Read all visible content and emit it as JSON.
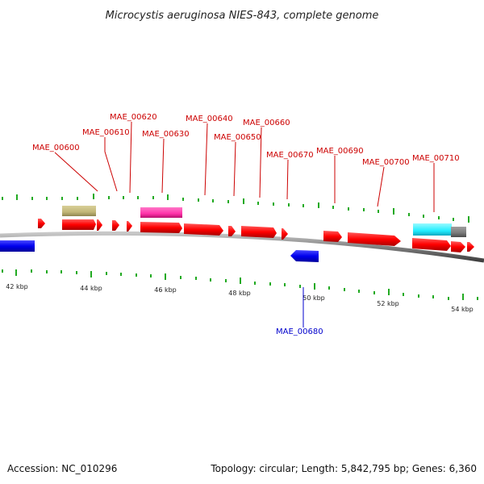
{
  "title": "Microcystis aeruginosa NIES-843, complete genome",
  "footer": {
    "accession": "Accession: NC_010296",
    "summary": "Topology: circular; Length: 5,842,795 bp; Genes: 6,360"
  },
  "axis_labels": [
    "42 kbp",
    "44 kbp",
    "46 kbp",
    "48 kbp",
    "50 kbp",
    "52 kbp",
    "54 kbp"
  ],
  "colors": {
    "forward_cds": "#ff0000",
    "reverse_cds": "#0000ee",
    "forward_label": "#cc0000",
    "reverse_label": "#0000cc",
    "tick": "#22aa22",
    "backbone": "#808080",
    "feature_olive": "#c2b778",
    "feature_magenta": "#ff33aa",
    "feature_cyan": "#22eeff",
    "feature_gray": "#7a7a7a"
  },
  "gene_labels": {
    "mae_00600": "MAE_00600",
    "mae_00610": "MAE_00610",
    "mae_00620": "MAE_00620",
    "mae_00630": "MAE_00630",
    "mae_00640": "MAE_00640",
    "mae_00650": "MAE_00650",
    "mae_00660": "MAE_00660",
    "mae_00670": "MAE_00670",
    "mae_00680": "MAE_00680",
    "mae_00690": "MAE_00690",
    "mae_00700": "MAE_00700",
    "mae_00710": "MAE_00710"
  }
}
